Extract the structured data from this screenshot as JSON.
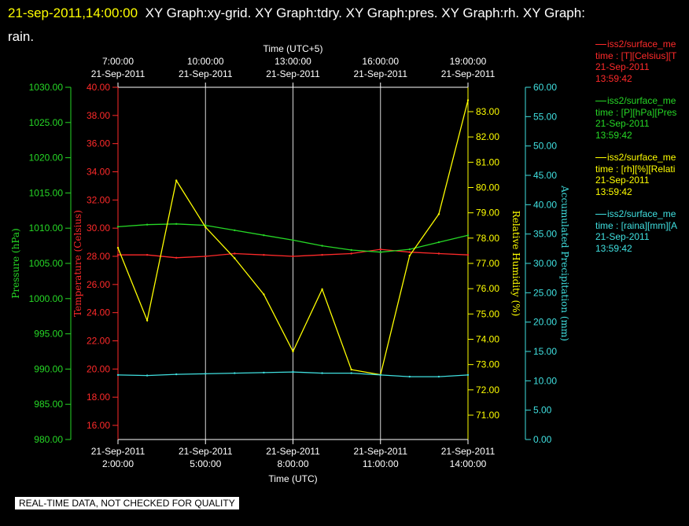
{
  "title": {
    "timestamp": "21-sep-2011,14:00:00",
    "graphs": "XY Graph:xy-grid.  XY Graph:tdry.  XY Graph:pres.  XY Graph:rh.  XY Graph:",
    "continuation": "rain."
  },
  "footer": "REAL-TIME DATA, NOT CHECKED FOR QUALITY",
  "colors": {
    "background": "#000000",
    "axis": "#ffffff",
    "grid": "#d8d8d8",
    "temperature": "#ff2a2a",
    "pressure": "#26d826",
    "humidity": "#ffff00",
    "precipitation": "#40e0e0",
    "timestamp": "#ffff00"
  },
  "legend": [
    {
      "line": "iss2/surface_me",
      "desc": "time : [T][Celsius][T",
      "date": "21-Sep-2011",
      "time": "13:59:42",
      "color": "#ff2a2a"
    },
    {
      "line": "iss2/surface_me",
      "desc": "time : [P][hPa][Pres",
      "date": "21-Sep-2011",
      "time": "13:59:42",
      "color": "#26d826"
    },
    {
      "line": "iss2/surface_me",
      "desc": "time : [rh][%][Relati",
      "date": "21-Sep-2011",
      "time": "13:59:42",
      "color": "#ffff00"
    },
    {
      "line": "iss2/surface_me",
      "desc": "time : [raina][mm][A",
      "date": "21-Sep-2011",
      "time": "13:59:42",
      "color": "#40e0e0"
    }
  ],
  "chart_data": {
    "type": "line",
    "top_axis": {
      "label": "Time (UTC+5)",
      "ticks": [
        {
          "time": "7:00:00",
          "date": "21-Sep-2011"
        },
        {
          "time": "10:00:00",
          "date": "21-Sep-2011"
        },
        {
          "time": "13:00:00",
          "date": "21-Sep-2011"
        },
        {
          "time": "16:00:00",
          "date": "21-Sep-2011"
        },
        {
          "time": "19:00:00",
          "date": "21-Sep-2011"
        }
      ]
    },
    "bottom_axis": {
      "label": "Time (UTC)",
      "range": [
        "2:00:00",
        "14:00:00"
      ],
      "ticks": [
        {
          "time": "2:00:00",
          "date": "21-Sep-2011"
        },
        {
          "time": "5:00:00",
          "date": "21-Sep-2011"
        },
        {
          "time": "8:00:00",
          "date": "21-Sep-2011"
        },
        {
          "time": "11:00:00",
          "date": "21-Sep-2011"
        },
        {
          "time": "14:00:00",
          "date": "21-Sep-2011"
        }
      ]
    },
    "grid": "vertical",
    "axes": {
      "pressure": {
        "label": "Pressure (hPa)",
        "range": [
          980,
          1030
        ],
        "ticks": [
          "1030.00",
          "1025.00",
          "1020.00",
          "1015.00",
          "1010.00",
          "1005.00",
          "1000.00",
          "995.00",
          "990.00",
          "985.00",
          "980.00"
        ]
      },
      "temperature": {
        "label": "Temperature (Celsius)",
        "range": [
          15.0,
          40.0
        ],
        "ticks": [
          "40.00",
          "38.00",
          "36.00",
          "34.00",
          "32.00",
          "30.00",
          "28.00",
          "26.00",
          "24.00",
          "22.00",
          "20.00",
          "18.00",
          "16.00"
        ]
      },
      "humidity": {
        "label": "Relative Humidity (%)",
        "range": [
          70.2,
          83.8
        ],
        "ticks": [
          "83.00",
          "82.00",
          "81.00",
          "80.00",
          "79.00",
          "78.00",
          "77.00",
          "76.00",
          "75.00",
          "74.00",
          "73.00",
          "72.00",
          "71.00"
        ]
      },
      "precipitation": {
        "label": "Accumulated Precipitation (mm)",
        "range": [
          0,
          60
        ],
        "ticks": [
          "60.00",
          "55.00",
          "50.00",
          "45.00",
          "40.00",
          "35.00",
          "30.00",
          "25.00",
          "20.00",
          "15.00",
          "10.00",
          "5.00",
          "0.00"
        ]
      }
    },
    "x_hours_utc": [
      2,
      3,
      4,
      5,
      6,
      7,
      8,
      9,
      10,
      11,
      12,
      13,
      14
    ],
    "series": [
      {
        "name": "iss2/surface_me",
        "axis": "temperature",
        "color": "#ff2a2a",
        "values": [
          28.1,
          28.1,
          27.9,
          28.0,
          28.2,
          28.1,
          28.0,
          28.1,
          28.2,
          28.5,
          28.3,
          28.2,
          28.1
        ]
      },
      {
        "name": "iss2/surface_me",
        "axis": "pressure",
        "color": "#26d826",
        "values": [
          1010.2,
          1010.5,
          1010.6,
          1010.4,
          1009.7,
          1009.0,
          1008.3,
          1007.5,
          1006.9,
          1006.6,
          1007.0,
          1008.0,
          1009.0
        ]
      },
      {
        "name": "iss2/surface_me",
        "axis": "humidity",
        "color": "#ffff00",
        "values": [
          77.6,
          74.8,
          80.2,
          78.4,
          77.2,
          75.8,
          73.6,
          76.0,
          72.9,
          72.7,
          77.3,
          78.9,
          83.3
        ]
      },
      {
        "name": "iss2/surface_me",
        "axis": "precipitation",
        "color": "#40e0e0",
        "values": [
          11.0,
          10.9,
          11.1,
          11.2,
          11.3,
          11.4,
          11.5,
          11.3,
          11.3,
          11.0,
          10.7,
          10.7,
          11.0
        ]
      }
    ]
  }
}
